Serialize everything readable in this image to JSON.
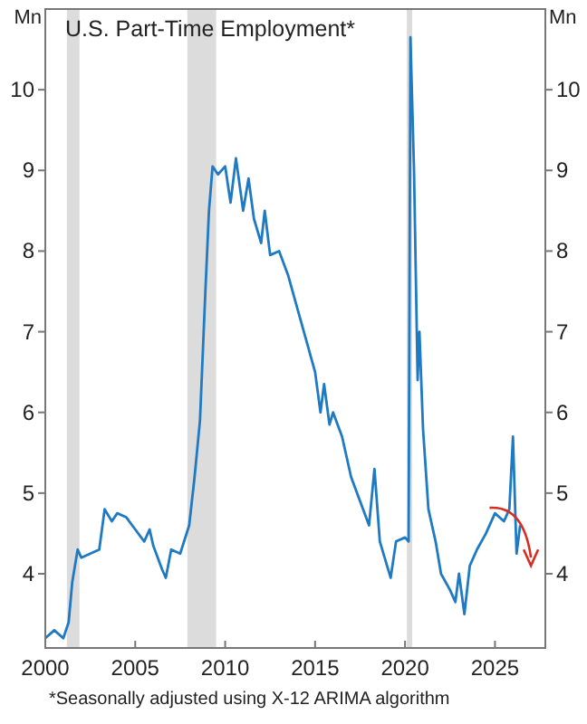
{
  "chart_data": {
    "type": "line",
    "title": "U.S. Part-Time Employment*",
    "ylabel": "Mn",
    "y2label": "Mn",
    "annotations": [
      "*Seasonally adjusted using X-12 ARIMA algorithm"
    ],
    "xlim": [
      2000,
      2027.8
    ],
    "xticks": [
      2000,
      2005,
      2010,
      2015,
      2020,
      2025
    ],
    "ylim": [
      3.08,
      11
    ],
    "yticks": [
      4,
      5,
      6,
      7,
      8,
      9,
      10
    ],
    "y2lim": [
      3.08,
      11
    ],
    "y2ticks": [
      4,
      5,
      6,
      7,
      8,
      9,
      10
    ],
    "grid": false,
    "bands": [
      {
        "axis": "x",
        "from": 2001.2,
        "to": 2001.9,
        "color": "#dcdcdc"
      },
      {
        "axis": "x",
        "from": 2007.9,
        "to": 2009.5,
        "color": "#dcdcdc"
      },
      {
        "axis": "x",
        "from": 2020.1,
        "to": 2020.4,
        "color": "#dcdcdc"
      }
    ],
    "series": [
      {
        "color": "#1f7ac4",
        "x": [
          2000,
          2000.5,
          2001,
          2001.3,
          2001.5,
          2001.8,
          2002,
          2002.5,
          2003,
          2003.3,
          2003.7,
          2004,
          2004.5,
          2005,
          2005.5,
          2005.8,
          2006,
          2006.5,
          2006.7,
          2007,
          2007.5,
          2008,
          2008.3,
          2008.6,
          2008.9,
          2009.1,
          2009.3,
          2009.6,
          2010,
          2010.3,
          2010.6,
          2011,
          2011.3,
          2011.6,
          2012,
          2012.2,
          2012.5,
          2013,
          2013.5,
          2014,
          2014.5,
          2015,
          2015.3,
          2015.5,
          2015.8,
          2016,
          2016.5,
          2017,
          2017.5,
          2018,
          2018.3,
          2018.6,
          2019,
          2019.2,
          2019.5,
          2020,
          2020.2,
          2020.3,
          2020.5,
          2020.7,
          2020.8,
          2021,
          2021.3,
          2021.7,
          2022,
          2022.5,
          2022.8,
          2023,
          2023.3,
          2023.6,
          2024,
          2024.5,
          2025,
          2025.5,
          2025.8,
          2026,
          2026.2,
          2026.4
        ],
        "values": [
          3.2,
          3.3,
          3.2,
          3.4,
          3.9,
          4.3,
          4.2,
          4.25,
          4.3,
          4.8,
          4.65,
          4.75,
          4.7,
          4.55,
          4.4,
          4.55,
          4.35,
          4.05,
          3.95,
          4.3,
          4.25,
          4.6,
          5.2,
          5.9,
          7.5,
          8.5,
          9.05,
          8.95,
          9.05,
          8.6,
          9.15,
          8.5,
          8.9,
          8.4,
          8.1,
          8.5,
          7.95,
          8.0,
          7.7,
          7.3,
          6.9,
          6.5,
          6.0,
          6.35,
          5.85,
          6.0,
          5.7,
          5.2,
          4.9,
          4.6,
          5.3,
          4.4,
          4.1,
          3.95,
          4.4,
          4.45,
          4.4,
          10.65,
          9.0,
          6.4,
          7.0,
          5.8,
          4.8,
          4.4,
          4.0,
          3.8,
          3.65,
          4.0,
          3.5,
          4.1,
          4.3,
          4.5,
          4.75,
          4.65,
          4.8,
          5.7,
          4.25,
          4.6
        ]
      }
    ]
  }
}
